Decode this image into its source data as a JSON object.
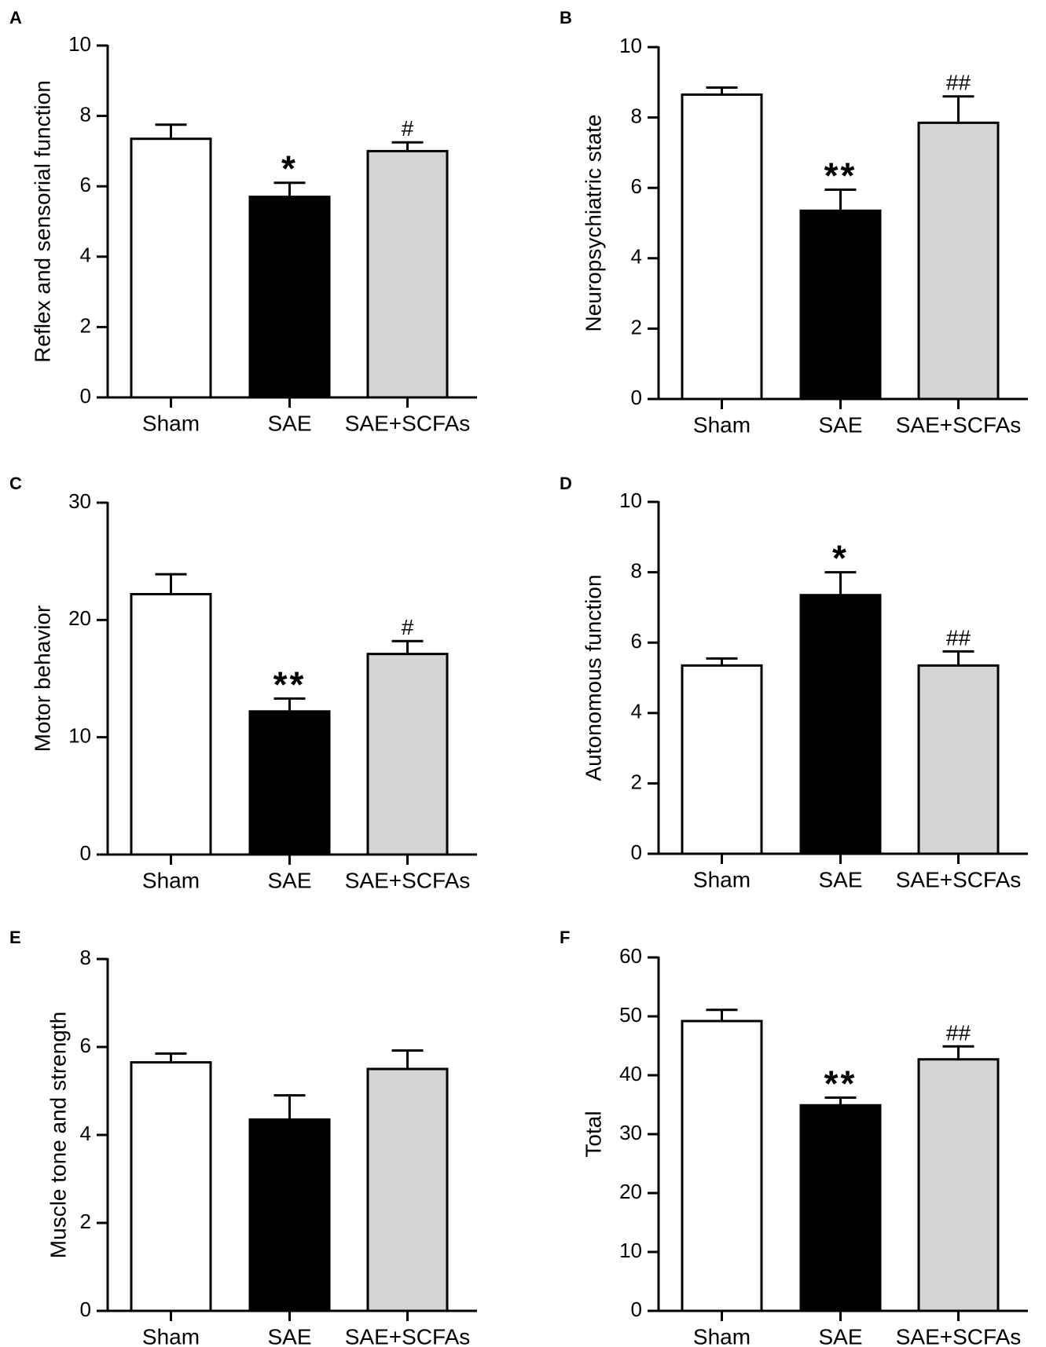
{
  "chart_data": [
    {
      "panel": "A",
      "type": "bar",
      "categories": [
        "Sham",
        "SAE",
        "SAE+SCFAs"
      ],
      "values": [
        7.35,
        5.7,
        7.0
      ],
      "errors": [
        0.4,
        0.4,
        0.25
      ],
      "significance": [
        "",
        "*",
        "#"
      ],
      "ylabel": "Reflex and sensorial function",
      "ylim": [
        0,
        10
      ],
      "yticks": [
        0,
        2,
        4,
        6,
        8,
        10
      ],
      "bar_colors": [
        "#ffffff",
        "#000000",
        "#d4d4d4"
      ]
    },
    {
      "panel": "B",
      "type": "bar",
      "categories": [
        "Sham",
        "SAE",
        "SAE+SCFAs"
      ],
      "values": [
        8.65,
        5.35,
        7.85
      ],
      "errors": [
        0.2,
        0.6,
        0.75
      ],
      "significance": [
        "",
        "**",
        "##"
      ],
      "ylabel": "Neuropsychiatric state",
      "ylim": [
        0,
        10
      ],
      "yticks": [
        0,
        2,
        4,
        6,
        8,
        10
      ],
      "bar_colors": [
        "#ffffff",
        "#000000",
        "#d4d4d4"
      ]
    },
    {
      "panel": "C",
      "type": "bar",
      "categories": [
        "Sham",
        "SAE",
        "SAE+SCFAs"
      ],
      "values": [
        22.2,
        12.2,
        17.1
      ],
      "errors": [
        1.7,
        1.1,
        1.1
      ],
      "significance": [
        "",
        "**",
        "#"
      ],
      "ylabel": "Motor behavior",
      "ylim": [
        0,
        30
      ],
      "yticks": [
        0,
        10,
        20,
        30
      ],
      "bar_colors": [
        "#ffffff",
        "#000000",
        "#d4d4d4"
      ]
    },
    {
      "panel": "D",
      "type": "bar",
      "categories": [
        "Sham",
        "SAE",
        "SAE+SCFAs"
      ],
      "values": [
        5.35,
        7.35,
        5.35
      ],
      "errors": [
        0.2,
        0.65,
        0.4
      ],
      "significance": [
        "",
        "*",
        "##"
      ],
      "ylabel": "Autonomous function",
      "ylim": [
        0,
        10
      ],
      "yticks": [
        0,
        2,
        4,
        6,
        8,
        10
      ],
      "bar_colors": [
        "#ffffff",
        "#000000",
        "#d4d4d4"
      ]
    },
    {
      "panel": "E",
      "type": "bar",
      "categories": [
        "Sham",
        "SAE",
        "SAE+SCFAs"
      ],
      "values": [
        5.65,
        4.35,
        5.5
      ],
      "errors": [
        0.2,
        0.55,
        0.42
      ],
      "significance": [
        "",
        "",
        ""
      ],
      "ylabel": "Muscle tone and strength",
      "ylim": [
        0,
        8
      ],
      "yticks": [
        0,
        2,
        4,
        6,
        8
      ],
      "bar_colors": [
        "#ffffff",
        "#000000",
        "#d4d4d4"
      ]
    },
    {
      "panel": "F",
      "type": "bar",
      "categories": [
        "Sham",
        "SAE",
        "SAE+SCFAs"
      ],
      "values": [
        49.2,
        34.9,
        42.7
      ],
      "errors": [
        1.9,
        1.3,
        2.2
      ],
      "significance": [
        "",
        "**",
        "##"
      ],
      "ylabel": "Total",
      "ylim": [
        0,
        60
      ],
      "yticks": [
        0,
        10,
        20,
        30,
        40,
        50,
        60
      ],
      "bar_colors": [
        "#ffffff",
        "#000000",
        "#d4d4d4"
      ]
    }
  ]
}
